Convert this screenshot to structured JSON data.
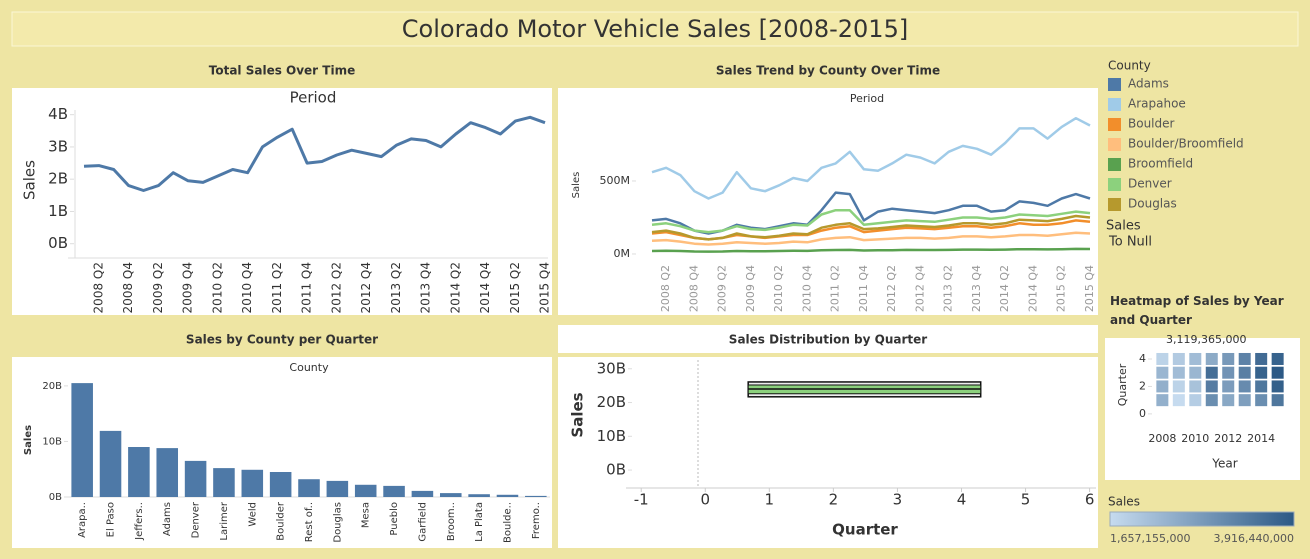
{
  "title": "Colorado Motor Vehicle Sales [2008-2015]",
  "chart_data": [
    {
      "type": "line",
      "title": "Total Sales Over Time",
      "subtitle": "Period",
      "y_label": "Sales",
      "color": "#4e79a7",
      "categories": [
        null,
        "2008 Q2",
        null,
        "2008 Q4",
        null,
        "2009 Q2",
        null,
        "2009 Q4",
        null,
        "2010 Q2",
        null,
        "2010 Q4",
        null,
        "2011 Q2",
        null,
        "2011 Q4",
        null,
        "2012 Q2",
        null,
        "2012 Q4",
        null,
        "2013 Q2",
        null,
        "2013 Q4",
        null,
        "2014 Q2",
        null,
        "2014 Q4",
        null,
        "2015 Q2",
        null,
        "2015 Q4"
      ],
      "values": [
        2.4,
        2.42,
        2.3,
        1.8,
        1.65,
        1.8,
        2.2,
        1.95,
        1.9,
        2.1,
        2.3,
        2.2,
        3.0,
        3.3,
        3.55,
        2.5,
        2.55,
        2.75,
        2.9,
        2.8,
        2.7,
        3.05,
        3.25,
        3.2,
        3.0,
        3.4,
        3.75,
        3.6,
        3.4,
        3.8,
        3.92,
        3.75
      ],
      "ylim": [
        -0.35,
        4.3
      ],
      "yticks": [
        {
          "value": 0,
          "label": "0B"
        },
        {
          "value": 1,
          "label": "1B"
        },
        {
          "value": 2,
          "label": "2B"
        },
        {
          "value": 3,
          "label": "3B"
        },
        {
          "value": 4,
          "label": "4B"
        }
      ]
    },
    {
      "type": "line",
      "title": "Sales Trend by County Over Time",
      "subtitle": "Period",
      "y_label": "Sales",
      "legend_title": "County",
      "extra_legend": {
        "title": "Sales",
        "label": "To Null"
      },
      "categories": [
        null,
        "2008 Q2",
        null,
        "2008 Q4",
        null,
        "2009 Q2",
        null,
        "2009 Q4",
        null,
        "2010 Q2",
        null,
        "2010 Q4",
        null,
        "2011 Q2",
        null,
        "2011 Q4",
        null,
        "2012 Q2",
        null,
        "2012 Q4",
        null,
        "2013 Q2",
        null,
        "2013 Q4",
        null,
        "2014 Q2",
        null,
        "2014 Q4",
        null,
        "2015 Q2",
        null,
        "2015 Q4"
      ],
      "series": [
        {
          "name": "Adams",
          "color": "#4e79a7",
          "values": [
            230,
            240,
            210,
            160,
            140,
            160,
            200,
            180,
            170,
            190,
            210,
            200,
            300,
            420,
            410,
            230,
            290,
            310,
            300,
            290,
            280,
            300,
            330,
            330,
            290,
            300,
            360,
            350,
            330,
            380,
            410,
            380
          ]
        },
        {
          "name": "Arapahoe",
          "color": "#a0cbe8",
          "values": [
            560,
            590,
            540,
            430,
            380,
            420,
            560,
            450,
            430,
            470,
            520,
            500,
            590,
            620,
            700,
            580,
            570,
            620,
            680,
            660,
            620,
            700,
            740,
            720,
            680,
            760,
            860,
            860,
            790,
            870,
            930,
            880
          ]
        },
        {
          "name": "Boulder",
          "color": "#f28e2b",
          "values": [
            140,
            150,
            130,
            110,
            100,
            110,
            130,
            120,
            110,
            120,
            130,
            130,
            160,
            180,
            190,
            150,
            160,
            170,
            180,
            175,
            170,
            180,
            190,
            190,
            180,
            190,
            210,
            200,
            200,
            210,
            230,
            220
          ]
        },
        {
          "name": "Boulder/Broomfield",
          "color": "#ffbe7d",
          "values": [
            90,
            95,
            85,
            70,
            65,
            70,
            80,
            75,
            70,
            75,
            85,
            80,
            100,
            110,
            115,
            95,
            100,
            105,
            110,
            110,
            105,
            110,
            120,
            120,
            115,
            120,
            130,
            130,
            125,
            135,
            145,
            140
          ]
        },
        {
          "name": "Broomfield",
          "color": "#59a14f",
          "values": [
            20,
            22,
            20,
            17,
            16,
            17,
            20,
            19,
            18,
            20,
            22,
            21,
            25,
            27,
            28,
            24,
            25,
            26,
            28,
            27,
            27,
            28,
            30,
            30,
            29,
            30,
            33,
            32,
            31,
            33,
            35,
            34
          ]
        },
        {
          "name": "Denver",
          "color": "#8cd17d",
          "values": [
            200,
            210,
            190,
            160,
            150,
            160,
            190,
            170,
            165,
            180,
            200,
            195,
            270,
            300,
            300,
            200,
            210,
            220,
            230,
            225,
            220,
            235,
            250,
            250,
            240,
            250,
            270,
            265,
            260,
            275,
            290,
            280
          ]
        },
        {
          "name": "Douglas",
          "color": "#b6992d",
          "values": [
            150,
            160,
            140,
            110,
            100,
            110,
            140,
            120,
            115,
            125,
            140,
            135,
            180,
            200,
            210,
            170,
            175,
            185,
            195,
            190,
            185,
            195,
            210,
            210,
            200,
            210,
            235,
            230,
            225,
            240,
            260,
            250
          ]
        }
      ],
      "ylim": [
        -55,
        986
      ],
      "yticks": [
        {
          "value": 0,
          "label": "0M"
        },
        {
          "value": 500,
          "label": "500M"
        }
      ]
    },
    {
      "type": "bar",
      "title": "Sales by County per Quarter",
      "subtitle": "County",
      "y_label": "Sales",
      "color": "#4e79a7",
      "categories": [
        "Arapa..",
        "El Paso",
        "Jeffers..",
        "Adams",
        "Denver",
        "Larimer",
        "Weld",
        "Boulder",
        "Rest of..",
        "Douglas",
        "Mesa",
        "Pueblo",
        "Garfield",
        "Broom..",
        "La Plata",
        "Boulde..",
        "Fremo.."
      ],
      "values": [
        20.5,
        11.9,
        9.0,
        8.8,
        6.5,
        5.2,
        4.9,
        4.5,
        3.2,
        2.9,
        2.2,
        2.0,
        1.1,
        0.7,
        0.5,
        0.4,
        0.2
      ],
      "ylim": [
        0,
        22.5
      ],
      "yticks": [
        {
          "value": 0,
          "label": "0B"
        },
        {
          "value": 10,
          "label": "10B"
        },
        {
          "value": 20,
          "label": "20B"
        }
      ]
    },
    {
      "type": "box",
      "title": "Sales Distribution by Quarter",
      "x_label": "Quarter",
      "y_label": "Sales",
      "color": "#8cd17d",
      "box": {
        "xmin": 0.67,
        "xmax": 4.3,
        "whisker_low": 21.7,
        "q1": 22.6,
        "median": 24,
        "q3": 25.2,
        "whisker_high": 26.1
      },
      "xlim": [
        -1.3,
        6.1
      ],
      "xticks": [
        -1,
        0,
        1,
        2,
        3,
        4,
        5,
        6
      ],
      "ylim": [
        -5.9,
        32.6
      ],
      "yticks": [
        {
          "value": 0,
          "label": "0B"
        },
        {
          "value": 10,
          "label": "10B"
        },
        {
          "value": 20,
          "label": "20B"
        },
        {
          "value": 30,
          "label": "30B"
        }
      ]
    },
    {
      "type": "heatmap",
      "title": "Heatmap of Sales by Year and Quarter",
      "x_label": "Year",
      "y_label": "Quarter",
      "annotation": "3,119,365,000",
      "x": [
        2008,
        2009,
        2010,
        2011,
        2012,
        2013,
        2014,
        2015
      ],
      "y": [
        1,
        2,
        3,
        4
      ],
      "values": [
        [
          2400000000,
          2420000000,
          2300000000,
          1800000000
        ],
        [
          1657155000,
          1800000000,
          2200000000,
          1950000000
        ],
        [
          1900000000,
          2100000000,
          2300000000,
          2200000000
        ],
        [
          3000000000,
          3300000000,
          3550000000,
          2500000000
        ],
        [
          2550000000,
          2750000000,
          2900000000,
          2800000000
        ],
        [
          2700000000,
          3050000000,
          3250000000,
          3200000000
        ],
        [
          3000000000,
          3400000000,
          3750000000,
          3600000000
        ],
        [
          3400000000,
          3800000000,
          3916440000,
          3750000000
        ]
      ],
      "xlim": [
        2007.25,
        2015.75
      ],
      "xticks": [
        2008,
        2010,
        2012,
        2014
      ],
      "ylim": [
        -0.3,
        4.8
      ],
      "yticks": [
        0,
        2,
        4
      ],
      "legend_title": "Sales",
      "colors": [
        "#c6dbef",
        "#2c5985"
      ],
      "color_ticks": [
        {
          "value": 1657155000,
          "label": "1,657,155,000"
        },
        {
          "value": 3916440000,
          "label": "3,916,440,000"
        }
      ]
    }
  ]
}
